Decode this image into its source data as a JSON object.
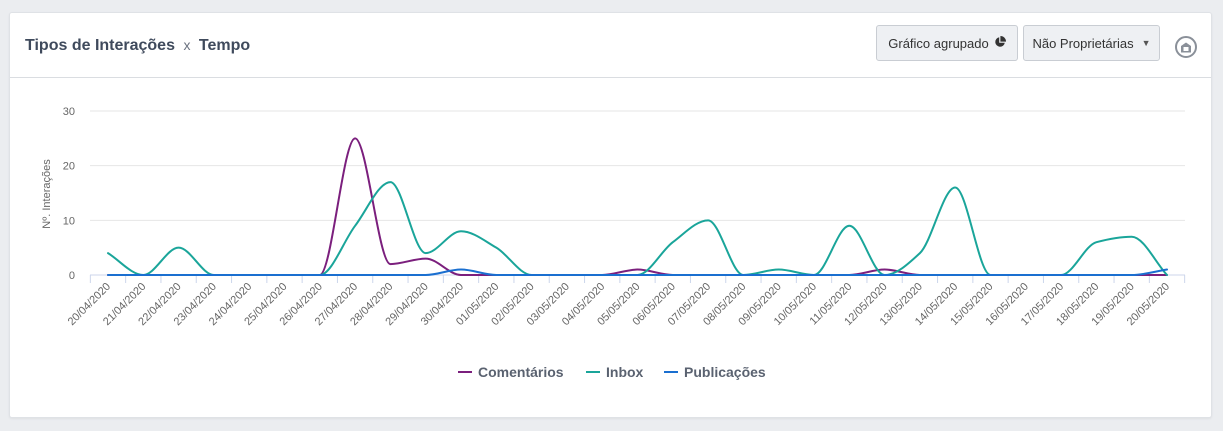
{
  "header": {
    "title_part1": "Tipos de Interações",
    "title_separator": "x",
    "title_part2": "Tempo",
    "grouped_button_label": "Gráfico agrupado",
    "grouped_button_icon": "pie-chart-icon",
    "filter_dropdown_label": "Não Proprietárias",
    "filter_dropdown_icon": "caret-down-icon",
    "snapshot_icon": "camera-icon"
  },
  "colors": {
    "Comentários": "#7b1f7d",
    "Inbox": "#1aa59a",
    "Publicações": "#1a6fd0",
    "grid": "#e6e6e6",
    "axis_text": "#666666"
  },
  "chart_data": {
    "type": "line",
    "ylabel": "Nº. Interações",
    "xlabel": "",
    "ylim": [
      0,
      30
    ],
    "yticks": [
      0,
      10,
      20,
      30
    ],
    "grid": true,
    "legend_position": "bottom",
    "categories": [
      "20/04/2020",
      "21/04/2020",
      "22/04/2020",
      "23/04/2020",
      "24/04/2020",
      "25/04/2020",
      "26/04/2020",
      "27/04/2020",
      "28/04/2020",
      "29/04/2020",
      "30/04/2020",
      "01/05/2020",
      "02/05/2020",
      "03/05/2020",
      "04/05/2020",
      "05/05/2020",
      "06/05/2020",
      "07/05/2020",
      "08/05/2020",
      "09/05/2020",
      "10/05/2020",
      "11/05/2020",
      "12/05/2020",
      "13/05/2020",
      "14/05/2020",
      "15/05/2020",
      "16/05/2020",
      "17/05/2020",
      "18/05/2020",
      "19/05/2020",
      "20/05/2020"
    ],
    "series": [
      {
        "name": "Comentários",
        "values": [
          0,
          0,
          0,
          0,
          0,
          0,
          0,
          25,
          2,
          3,
          0,
          0,
          0,
          0,
          0,
          1,
          0,
          0,
          0,
          0,
          0,
          0,
          1,
          0,
          0,
          0,
          0,
          0,
          0,
          0,
          0
        ]
      },
      {
        "name": "Inbox",
        "values": [
          4,
          0,
          5,
          0,
          0,
          0,
          0,
          9,
          17,
          4,
          8,
          5,
          0,
          0,
          0,
          0,
          6,
          10,
          0,
          1,
          0,
          9,
          0,
          4,
          16,
          0,
          0,
          0,
          6,
          7,
          0
        ]
      },
      {
        "name": "Publicações",
        "values": [
          0,
          0,
          0,
          0,
          0,
          0,
          0,
          0,
          0,
          0,
          1,
          0,
          0,
          0,
          0,
          0,
          0,
          0,
          0,
          0,
          0,
          0,
          0,
          0,
          0,
          0,
          0,
          0,
          0,
          0,
          1
        ]
      }
    ]
  }
}
